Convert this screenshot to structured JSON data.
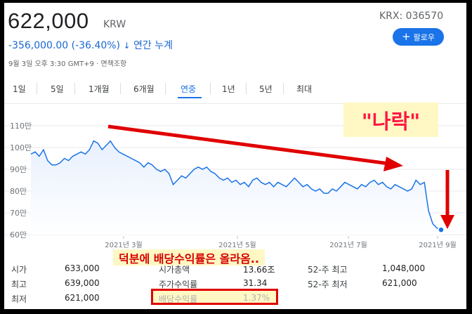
{
  "header": {
    "price": "622,000",
    "currency": "KRW",
    "ticker": "KRX: 036570",
    "follow_label": "팔로우",
    "change": "-356,000.00 (-36.40%)",
    "change_arrow": "↓",
    "change_period": "연간 누계",
    "timestamp": "9월 3일 오후 3:30 GMT+9 · 면책조항"
  },
  "tabs": [
    {
      "label": "1일"
    },
    {
      "label": "5일"
    },
    {
      "label": "1개월"
    },
    {
      "label": "6개월"
    },
    {
      "label": "연중",
      "active": true
    },
    {
      "label": "1년"
    },
    {
      "label": "5년"
    },
    {
      "label": "최대"
    }
  ],
  "chart_data": {
    "type": "area",
    "ylim": [
      60,
      110
    ],
    "y_ticks": [
      "110만",
      "100만",
      "90만",
      "80만",
      "70만",
      "60만"
    ],
    "x_ticks": [
      "2021년 3월",
      "2021년 5월",
      "2021년 7월",
      "2021년 9월"
    ],
    "series": [
      {
        "values": [
          97,
          98,
          96,
          99,
          94,
          92,
          92,
          93,
          95,
          94,
          96,
          97,
          98,
          97,
          99,
          103,
          102,
          99,
          101,
          103,
          100,
          98,
          97,
          96,
          95,
          94,
          93,
          91,
          93,
          92,
          90,
          89,
          90,
          88,
          83,
          85,
          87,
          86,
          88,
          90,
          91,
          90,
          91,
          89,
          88,
          86,
          85,
          86,
          84,
          85,
          83,
          84,
          82,
          85,
          86,
          84,
          83,
          84,
          82,
          84,
          83,
          82,
          84,
          86,
          84,
          82,
          83,
          81,
          80,
          81,
          79,
          79,
          81,
          80,
          82,
          84,
          83,
          82,
          81,
          83,
          82,
          84,
          85,
          83,
          84,
          82,
          81,
          83,
          82,
          81,
          80,
          81,
          85,
          83,
          84,
          71,
          65,
          63,
          62
        ]
      }
    ],
    "last_point": 62.2,
    "area_color": "#e8f0fe",
    "line_color": "#1a73e8"
  },
  "stats": {
    "col1": [
      {
        "label": "시가",
        "value": "633,000"
      },
      {
        "label": "최고",
        "value": "639,000"
      },
      {
        "label": "최저",
        "value": "621,000"
      }
    ],
    "col2": [
      {
        "label": "시가총액",
        "value": "13.66조"
      },
      {
        "label": "주가수익률",
        "value": "31.34"
      },
      {
        "label": "배당수익률",
        "value": "1.37%"
      }
    ],
    "col3": [
      {
        "label": "52-주 최고",
        "value": "1,048,000"
      },
      {
        "label": "52-주 최저",
        "value": "621,000"
      }
    ]
  },
  "annotations": {
    "nara": "\"나락\"",
    "dividend_note": "덕분에 배당수익률은 올라옴..",
    "arrow_color": "#e00000",
    "highlight_color": "#fff8c4"
  }
}
